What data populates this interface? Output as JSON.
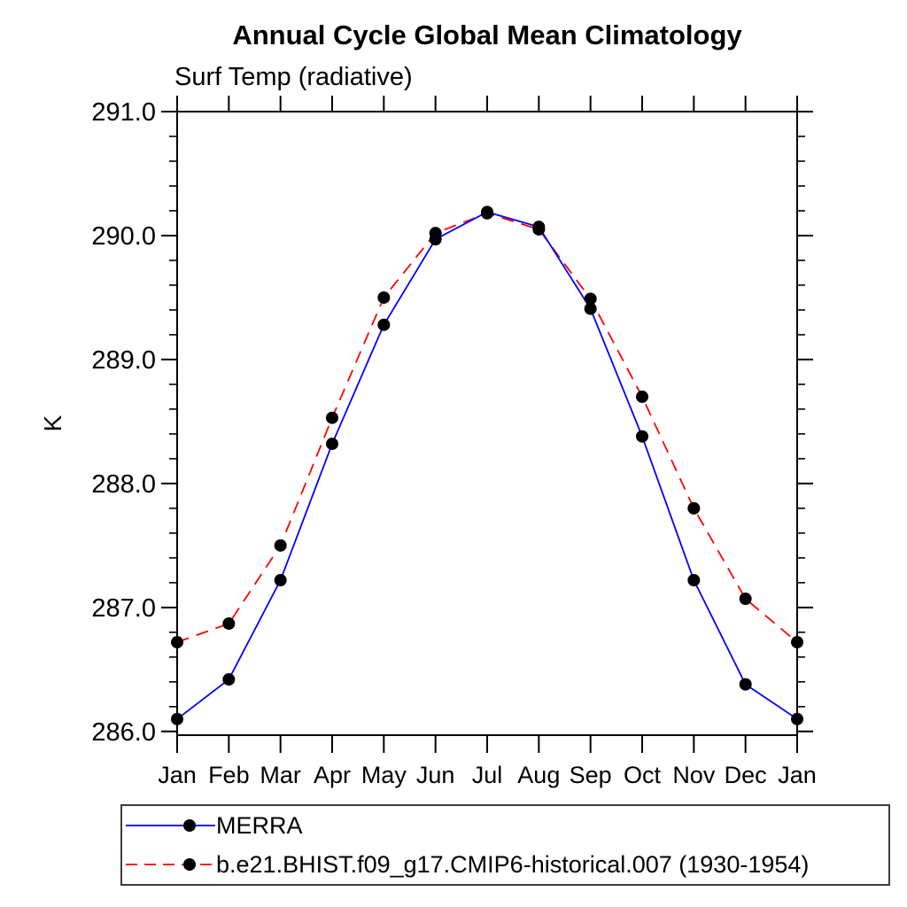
{
  "title": "Annual Cycle Global Mean Climatology",
  "subtitle": "Surf Temp (radiative)",
  "y_axis_title": "K",
  "chart_data": {
    "type": "line",
    "x_categories": [
      "Jan",
      "Feb",
      "Mar",
      "Apr",
      "May",
      "Jun",
      "Jul",
      "Aug",
      "Sep",
      "Oct",
      "Nov",
      "Dec",
      "Jan"
    ],
    "series": [
      {
        "name": "MERRA",
        "color": "#0000ff",
        "line_style": "solid",
        "marker": "filled-circle",
        "marker_color": "#000000",
        "values": [
          286.1,
          286.42,
          287.22,
          288.32,
          289.28,
          289.97,
          290.19,
          290.07,
          289.41,
          288.38,
          287.22,
          286.38,
          286.1
        ]
      },
      {
        "name": "b.e21.BHIST.f09_g17.CMIP6-historical.007 (1930-1954)",
        "color": "#ff0000",
        "line_style": "dashed",
        "marker": "filled-circle",
        "marker_color": "#000000",
        "values": [
          286.72,
          286.87,
          287.5,
          288.53,
          289.5,
          290.02,
          290.18,
          290.05,
          289.49,
          288.7,
          287.8,
          287.07,
          286.72
        ]
      }
    ],
    "xlabel": "",
    "ylabel": "K",
    "ylim": [
      285.97,
      291.0
    ],
    "yticks_major": [
      286.0,
      287.0,
      288.0,
      289.0,
      290.0,
      291.0
    ],
    "ytick_labels": [
      "286.0",
      "287.0",
      "288.0",
      "289.0",
      "290.0",
      "291.0"
    ],
    "y_minor_tick_interval": 0.2,
    "grid": false,
    "axis_color": "#000000",
    "legend_position": "bottom-left-box"
  }
}
